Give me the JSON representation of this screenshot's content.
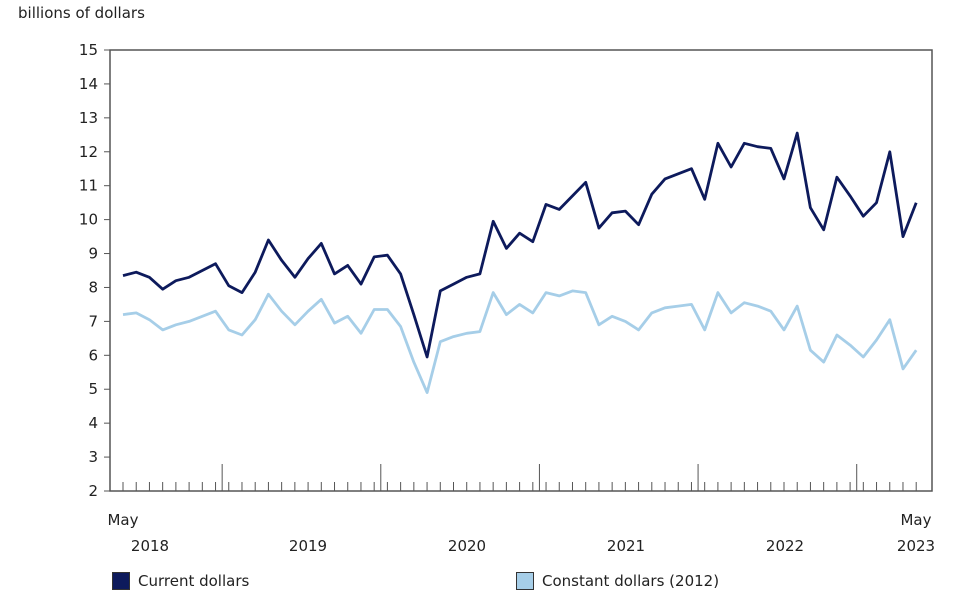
{
  "chart_data": {
    "type": "line",
    "ylabel": "billions of dollars",
    "ylim": [
      2,
      15
    ],
    "yticks": [
      2,
      3,
      4,
      5,
      6,
      7,
      8,
      9,
      10,
      11,
      12,
      13,
      14,
      15
    ],
    "x_start_label": {
      "month": "May",
      "year": "2018"
    },
    "x_end_label": {
      "month": "May",
      "year": "2023"
    },
    "year_labels": [
      "2019",
      "2020",
      "2021",
      "2022"
    ],
    "n_months": 61,
    "series": [
      {
        "name": "Current dollars",
        "color": "#0d1a5c",
        "values": [
          8.35,
          8.45,
          8.3,
          7.95,
          8.2,
          8.3,
          8.5,
          8.7,
          8.05,
          7.85,
          8.45,
          9.4,
          8.8,
          8.3,
          8.85,
          9.3,
          8.4,
          8.65,
          8.1,
          8.9,
          8.95,
          8.4,
          7.2,
          5.95,
          7.9,
          8.1,
          8.3,
          8.4,
          9.95,
          9.15,
          9.6,
          9.35,
          10.45,
          10.3,
          10.7,
          11.1,
          9.75,
          10.2,
          10.25,
          9.85,
          10.75,
          11.2,
          11.35,
          11.5,
          10.6,
          12.25,
          11.55,
          12.25,
          12.15,
          12.1,
          11.2,
          12.55,
          10.35,
          9.7,
          11.25,
          10.7,
          10.1,
          10.5,
          12.0,
          9.5,
          10.5
        ]
      },
      {
        "name": "Constant dollars (2012)",
        "color": "#a6cee8",
        "values": [
          7.2,
          7.25,
          7.05,
          6.75,
          6.9,
          7.0,
          7.15,
          7.3,
          6.75,
          6.6,
          7.05,
          7.8,
          7.3,
          6.9,
          7.3,
          7.65,
          6.95,
          7.15,
          6.65,
          7.35,
          7.35,
          6.85,
          5.8,
          4.9,
          6.4,
          6.55,
          6.65,
          6.7,
          7.85,
          7.2,
          7.5,
          7.25,
          7.85,
          7.75,
          7.9,
          7.85,
          6.9,
          7.15,
          7.0,
          6.75,
          7.25,
          7.4,
          7.45,
          7.5,
          6.75,
          7.85,
          7.25,
          7.55,
          7.45,
          7.3,
          6.75,
          7.45,
          6.15,
          5.8,
          6.6,
          6.3,
          5.95,
          6.45,
          7.05,
          5.6,
          6.15
        ]
      }
    ]
  }
}
